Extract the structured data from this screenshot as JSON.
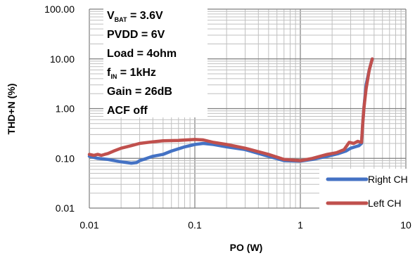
{
  "chart_data": {
    "type": "line",
    "xlabel": "PO (W)",
    "ylabel": "THD+N (%)",
    "x_scale": "log",
    "y_scale": "log",
    "xlim": [
      0.01,
      10
    ],
    "ylim": [
      0.01,
      100
    ],
    "x_tick_labels": [
      "0.01",
      "0.1",
      "1",
      "10"
    ],
    "y_tick_labels": [
      "0.01",
      "0.10",
      "1.00",
      "10.00",
      "100.00"
    ],
    "grid": true,
    "legend_position": "bottom-right",
    "annotations": [
      {
        "main": "V",
        "sub": "BAT",
        "rest": " = 3.6V"
      },
      {
        "main": "PVDD = 6V",
        "sub": "",
        "rest": ""
      },
      {
        "main": "Load = 4ohm",
        "sub": "",
        "rest": ""
      },
      {
        "main": "f",
        "sub": "IN",
        "rest": " = 1kHz"
      },
      {
        "main": "Gain = 26dB",
        "sub": "",
        "rest": ""
      },
      {
        "main": "ACF off",
        "sub": "",
        "rest": ""
      }
    ],
    "series": [
      {
        "name": "Right CH",
        "color": "#4472C4",
        "x": [
          0.01,
          0.012,
          0.015,
          0.02,
          0.025,
          0.028,
          0.03,
          0.035,
          0.04,
          0.05,
          0.06,
          0.08,
          0.1,
          0.12,
          0.15,
          0.2,
          0.3,
          0.5,
          0.7,
          1.0,
          1.3,
          1.8,
          2.3,
          2.7,
          3.0,
          3.3,
          3.6,
          3.8,
          3.9,
          4.0,
          4.2,
          4.5,
          4.8
        ],
        "y": [
          0.11,
          0.1,
          0.095,
          0.085,
          0.08,
          0.082,
          0.09,
          0.1,
          0.11,
          0.12,
          0.14,
          0.17,
          0.19,
          0.2,
          0.19,
          0.17,
          0.15,
          0.11,
          0.09,
          0.088,
          0.095,
          0.11,
          0.125,
          0.14,
          0.16,
          0.17,
          0.18,
          0.2,
          0.5,
          1.0,
          3.0,
          6.0,
          10.0
        ]
      },
      {
        "name": "Left CH",
        "color": "#C0504D",
        "x": [
          0.01,
          0.011,
          0.012,
          0.013,
          0.014,
          0.015,
          0.017,
          0.02,
          0.025,
          0.03,
          0.04,
          0.05,
          0.07,
          0.1,
          0.12,
          0.15,
          0.2,
          0.3,
          0.5,
          0.7,
          1.0,
          1.3,
          1.8,
          2.2,
          2.6,
          2.9,
          3.2,
          3.5,
          3.8,
          3.9,
          4.0,
          4.2,
          4.5,
          4.8
        ],
        "y": [
          0.12,
          0.115,
          0.12,
          0.115,
          0.12,
          0.125,
          0.14,
          0.16,
          0.18,
          0.2,
          0.215,
          0.225,
          0.23,
          0.24,
          0.235,
          0.21,
          0.19,
          0.16,
          0.12,
          0.095,
          0.09,
          0.1,
          0.12,
          0.13,
          0.15,
          0.21,
          0.2,
          0.22,
          0.21,
          0.5,
          1.0,
          2.5,
          6.0,
          10.0
        ]
      }
    ]
  }
}
